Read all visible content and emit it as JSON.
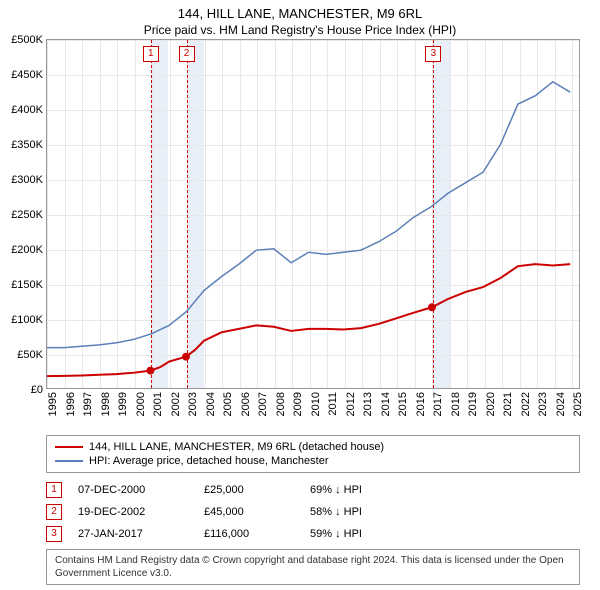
{
  "title": "144, HILL LANE, MANCHESTER, M9 6RL",
  "subtitle": "Price paid vs. HM Land Registry's House Price Index (HPI)",
  "chart": {
    "type": "line",
    "background_color": "#ffffff",
    "grid_color": "#e8e8e8",
    "border_color": "#999999",
    "x_min": 1995,
    "x_max": 2025.5,
    "y_min": 0,
    "y_max": 500000,
    "y_tick_step": 50000,
    "y_tick_prefix": "£",
    "y_tick_suffix": "K",
    "y_ticks": [
      "£0",
      "£50K",
      "£100K",
      "£150K",
      "£200K",
      "£250K",
      "£300K",
      "£350K",
      "£400K",
      "£450K",
      "£500K"
    ],
    "x_ticks": [
      1995,
      1996,
      1997,
      1998,
      1999,
      2000,
      2001,
      2002,
      2003,
      2004,
      2005,
      2006,
      2007,
      2008,
      2009,
      2010,
      2011,
      2012,
      2013,
      2014,
      2015,
      2016,
      2017,
      2018,
      2019,
      2020,
      2021,
      2022,
      2023,
      2024,
      2025
    ],
    "series": [
      {
        "name": "property",
        "label": "144, HILL LANE, MANCHESTER, M9 6RL (detached house)",
        "color": "#cc0000",
        "line_width": 2,
        "points": [
          [
            1995,
            17000
          ],
          [
            1996,
            17500
          ],
          [
            1997,
            18000
          ],
          [
            1998,
            19000
          ],
          [
            1999,
            20000
          ],
          [
            2000,
            22000
          ],
          [
            2000.93,
            25000
          ],
          [
            2001.5,
            30000
          ],
          [
            2002,
            38000
          ],
          [
            2002.97,
            45000
          ],
          [
            2003.5,
            55000
          ],
          [
            2004,
            68000
          ],
          [
            2005,
            80000
          ],
          [
            2006,
            85000
          ],
          [
            2007,
            90000
          ],
          [
            2008,
            88000
          ],
          [
            2009,
            82000
          ],
          [
            2010,
            85000
          ],
          [
            2011,
            85000
          ],
          [
            2012,
            84000
          ],
          [
            2013,
            86000
          ],
          [
            2014,
            92000
          ],
          [
            2015,
            100000
          ],
          [
            2016,
            108000
          ],
          [
            2017.07,
            116000
          ],
          [
            2018,
            128000
          ],
          [
            2019,
            138000
          ],
          [
            2020,
            145000
          ],
          [
            2021,
            158000
          ],
          [
            2022,
            175000
          ],
          [
            2023,
            178000
          ],
          [
            2024,
            176000
          ],
          [
            2025,
            178000
          ]
        ],
        "markers": [
          {
            "x": 2000.93,
            "y": 25000
          },
          {
            "x": 2002.97,
            "y": 45000
          },
          {
            "x": 2017.07,
            "y": 116000
          }
        ],
        "marker_color": "#cc0000",
        "marker_radius": 4
      },
      {
        "name": "hpi",
        "label": "HPI: Average price, detached house, Manchester",
        "color": "#5B7FB8",
        "line_width": 1.5,
        "points": [
          [
            1995,
            58000
          ],
          [
            1996,
            58000
          ],
          [
            1997,
            60000
          ],
          [
            1998,
            62000
          ],
          [
            1999,
            65000
          ],
          [
            2000,
            70000
          ],
          [
            2001,
            78000
          ],
          [
            2002,
            90000
          ],
          [
            2003,
            110000
          ],
          [
            2004,
            140000
          ],
          [
            2005,
            160000
          ],
          [
            2006,
            178000
          ],
          [
            2007,
            198000
          ],
          [
            2008,
            200000
          ],
          [
            2009,
            180000
          ],
          [
            2010,
            195000
          ],
          [
            2011,
            192000
          ],
          [
            2012,
            195000
          ],
          [
            2013,
            198000
          ],
          [
            2014,
            210000
          ],
          [
            2015,
            225000
          ],
          [
            2016,
            245000
          ],
          [
            2017,
            260000
          ],
          [
            2018,
            280000
          ],
          [
            2019,
            295000
          ],
          [
            2020,
            310000
          ],
          [
            2021,
            350000
          ],
          [
            2022,
            408000
          ],
          [
            2023,
            420000
          ],
          [
            2024,
            440000
          ],
          [
            2025,
            425000
          ]
        ]
      }
    ],
    "callouts": [
      {
        "n": "1",
        "x": 2000.93,
        "band_years": 1
      },
      {
        "n": "2",
        "x": 2002.97,
        "band_years": 1
      },
      {
        "n": "3",
        "x": 2017.07,
        "band_years": 1
      }
    ],
    "callout_band_color": "#e8eff8",
    "callout_line_color": "#cc0000",
    "callout_box_border": "#cc0000",
    "callout_box_text_color": "#cc0000"
  },
  "legend": {
    "series_0": "144, HILL LANE, MANCHESTER, M9 6RL (detached house)",
    "series_1": "HPI: Average price, detached house, Manchester",
    "color_0": "#cc0000",
    "color_1": "#5B7FB8"
  },
  "callout_table": [
    {
      "n": "1",
      "date": "07-DEC-2000",
      "price": "£25,000",
      "delta": "69% ↓ HPI"
    },
    {
      "n": "2",
      "date": "19-DEC-2002",
      "price": "£45,000",
      "delta": "58% ↓ HPI"
    },
    {
      "n": "3",
      "date": "27-JAN-2017",
      "price": "£116,000",
      "delta": "59% ↓ HPI"
    }
  ],
  "license": "Contains HM Land Registry data © Crown copyright and database right 2024. This data is licensed under the Open Government Licence v3.0."
}
